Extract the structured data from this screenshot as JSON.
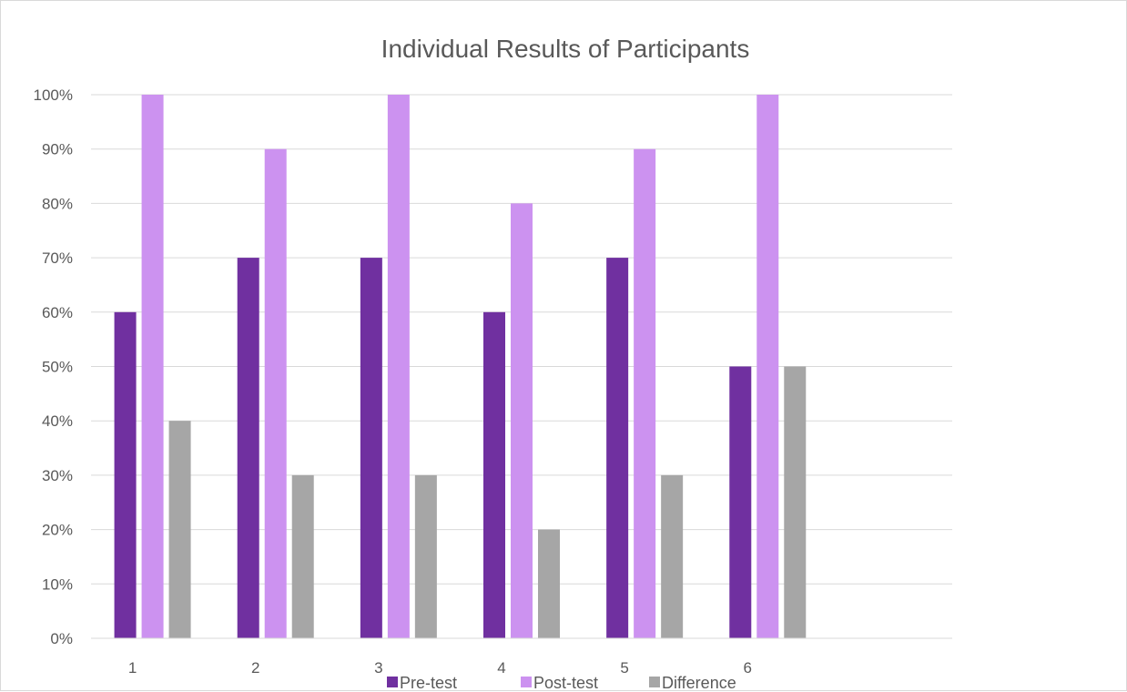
{
  "chart_data": {
    "type": "bar",
    "title": "Individual Results of Participants",
    "categories": [
      "1",
      "2",
      "3",
      "4",
      "5",
      "6",
      ""
    ],
    "series": [
      {
        "name": "Pre-test",
        "color": "#7030a0",
        "values": [
          60,
          70,
          70,
          60,
          70,
          50,
          null
        ]
      },
      {
        "name": "Post-test",
        "color": "#cc92f0",
        "values": [
          100,
          90,
          100,
          80,
          90,
          100,
          null
        ]
      },
      {
        "name": "Difference",
        "color": "#a6a6a6",
        "values": [
          40,
          30,
          30,
          20,
          30,
          50,
          null
        ]
      }
    ],
    "ylim": [
      0,
      100
    ],
    "yticks": [
      "0%",
      "10%",
      "20%",
      "30%",
      "40%",
      "50%",
      "60%",
      "70%",
      "80%",
      "90%",
      "100%"
    ],
    "grid": true,
    "legend": "bottom",
    "xlabel": "",
    "ylabel": ""
  }
}
